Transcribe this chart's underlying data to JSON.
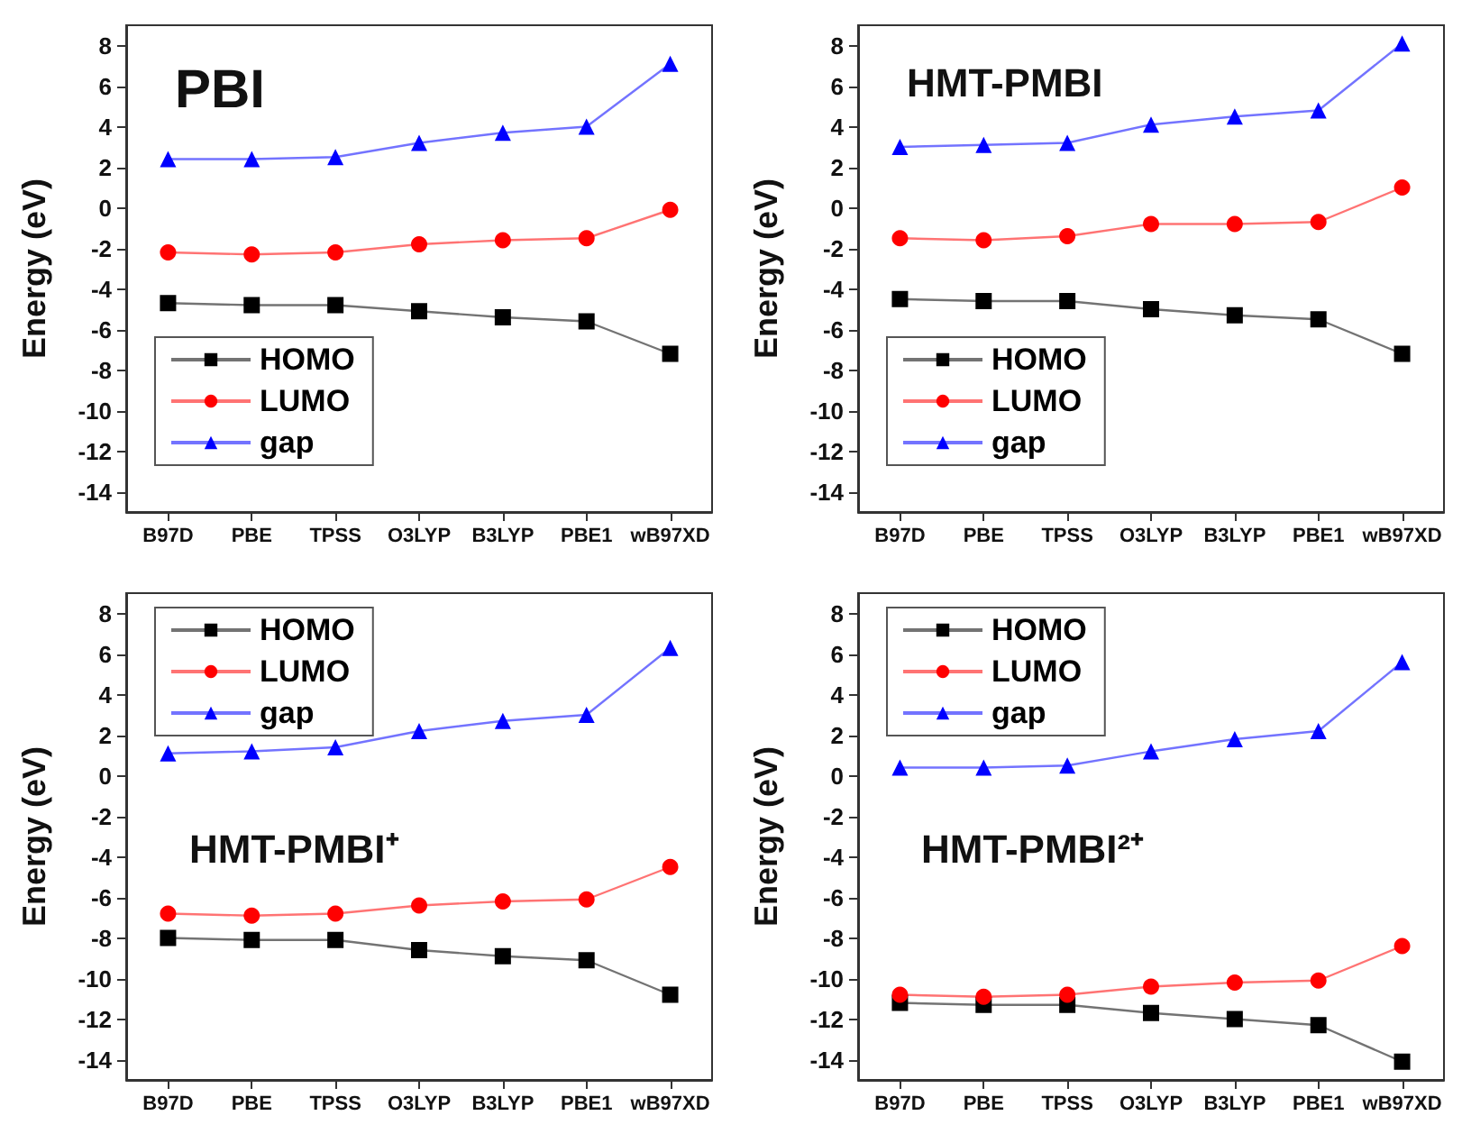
{
  "chart_data": [
    {
      "type": "line",
      "title": "PBI",
      "ylabel": "Energy (eV)",
      "categories": [
        "B97D",
        "PBE",
        "TPSS",
        "O3LYP",
        "B3LYP",
        "PBE1",
        "wB97XD"
      ],
      "ylim": [
        -15,
        9
      ],
      "yticks": [
        -14,
        -12,
        -10,
        -8,
        -6,
        -4,
        -2,
        0,
        2,
        4,
        6,
        8
      ],
      "grid": false,
      "legend": "bottom left",
      "series": [
        {
          "name": "HOMO",
          "color": "#000000",
          "marker": "square",
          "values": [
            -4.7,
            -4.8,
            -4.8,
            -5.1,
            -5.4,
            -5.6,
            -7.2
          ]
        },
        {
          "name": "LUMO",
          "color": "#ff0000",
          "marker": "circle",
          "values": [
            -2.2,
            -2.3,
            -2.2,
            -1.8,
            -1.6,
            -1.5,
            -0.1
          ]
        },
        {
          "name": "gap",
          "color": "#0000ff",
          "marker": "triangle",
          "values": [
            2.4,
            2.4,
            2.5,
            3.2,
            3.7,
            4.0,
            7.1
          ]
        }
      ]
    },
    {
      "type": "line",
      "title": "HMT-PMBI",
      "ylabel": "Energy (eV)",
      "categories": [
        "B97D",
        "PBE",
        "TPSS",
        "O3LYP",
        "B3LYP",
        "PBE1",
        "wB97XD"
      ],
      "ylim": [
        -15,
        9
      ],
      "yticks": [
        -14,
        -12,
        -10,
        -8,
        -6,
        -4,
        -2,
        0,
        2,
        4,
        6,
        8
      ],
      "grid": false,
      "legend": "bottom left",
      "series": [
        {
          "name": "HOMO",
          "color": "#000000",
          "marker": "square",
          "values": [
            -4.5,
            -4.6,
            -4.6,
            -5.0,
            -5.3,
            -5.5,
            -7.2
          ]
        },
        {
          "name": "LUMO",
          "color": "#ff0000",
          "marker": "circle",
          "values": [
            -1.5,
            -1.6,
            -1.4,
            -0.8,
            -0.8,
            -0.7,
            1.0
          ]
        },
        {
          "name": "gap",
          "color": "#0000ff",
          "marker": "triangle",
          "values": [
            3.0,
            3.1,
            3.2,
            4.1,
            4.5,
            4.8,
            8.1
          ]
        }
      ]
    },
    {
      "type": "line",
      "title": "HMT-PMBI⁺",
      "ylabel": "Energy (eV)",
      "categories": [
        "B97D",
        "PBE",
        "TPSS",
        "O3LYP",
        "B3LYP",
        "PBE1",
        "wB97XD"
      ],
      "ylim": [
        -15,
        9
      ],
      "yticks": [
        -14,
        -12,
        -10,
        -8,
        -6,
        -4,
        -2,
        0,
        2,
        4,
        6,
        8
      ],
      "grid": false,
      "legend": "top left",
      "series": [
        {
          "name": "HOMO",
          "color": "#000000",
          "marker": "square",
          "values": [
            -8.0,
            -8.1,
            -8.1,
            -8.6,
            -8.9,
            -9.1,
            -10.8
          ]
        },
        {
          "name": "LUMO",
          "color": "#ff0000",
          "marker": "circle",
          "values": [
            -6.8,
            -6.9,
            -6.8,
            -6.4,
            -6.2,
            -6.1,
            -4.5
          ]
        },
        {
          "name": "gap",
          "color": "#0000ff",
          "marker": "triangle",
          "values": [
            1.1,
            1.2,
            1.4,
            2.2,
            2.7,
            3.0,
            6.3
          ]
        }
      ]
    },
    {
      "type": "line",
      "title": "HMT-PMBI²⁺",
      "ylabel": "Energy (eV)",
      "categories": [
        "B97D",
        "PBE",
        "TPSS",
        "O3LYP",
        "B3LYP",
        "PBE1",
        "wB97XD"
      ],
      "ylim": [
        -15,
        9
      ],
      "yticks": [
        -14,
        -12,
        -10,
        -8,
        -6,
        -4,
        -2,
        0,
        2,
        4,
        6,
        8
      ],
      "grid": false,
      "legend": "top left",
      "series": [
        {
          "name": "HOMO",
          "color": "#000000",
          "marker": "square",
          "values": [
            -11.2,
            -11.3,
            -11.3,
            -11.7,
            -12.0,
            -12.3,
            -14.1
          ]
        },
        {
          "name": "LUMO",
          "color": "#ff0000",
          "marker": "circle",
          "values": [
            -10.8,
            -10.9,
            -10.8,
            -10.4,
            -10.2,
            -10.1,
            -8.4
          ]
        },
        {
          "name": "gap",
          "color": "#0000ff",
          "marker": "triangle",
          "values": [
            0.4,
            0.4,
            0.5,
            1.2,
            1.8,
            2.2,
            5.6
          ]
        }
      ]
    }
  ]
}
